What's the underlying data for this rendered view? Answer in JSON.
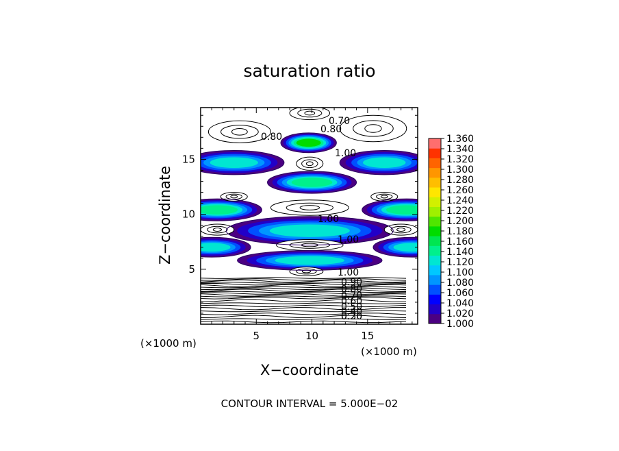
{
  "chart_data": {
    "type": "heatmap",
    "title": "saturation ratio",
    "xlabel": "X−coordinate",
    "ylabel": "Z−coordinate",
    "x_unit": "(×1000 m)",
    "y_unit": "(×1000 m)",
    "xlim": [
      0,
      19.5
    ],
    "ylim": [
      0,
      19.7
    ],
    "x_ticks": [
      5,
      10,
      15
    ],
    "y_ticks": [
      5,
      10,
      15
    ],
    "x_tick_labels": [
      "5",
      "10",
      "15"
    ],
    "y_tick_labels": [
      "5",
      "10",
      "15"
    ],
    "grid": false,
    "colorbar": {
      "min": 1.0,
      "max": 1.36,
      "step": 0.02,
      "labels": [
        "1.360",
        "1.340",
        "1.320",
        "1.300",
        "1.280",
        "1.260",
        "1.240",
        "1.220",
        "1.200",
        "1.180",
        "1.160",
        "1.140",
        "1.120",
        "1.100",
        "1.080",
        "1.060",
        "1.040",
        "1.020",
        "1.000"
      ],
      "colors": [
        "#4b0082",
        "#2200c8",
        "#0000ff",
        "#0050ff",
        "#0096ff",
        "#00c8ff",
        "#00e6d2",
        "#00f08c",
        "#00e650",
        "#00dc00",
        "#50e600",
        "#a0f000",
        "#d2f000",
        "#ffe600",
        "#ffbe00",
        "#ff9600",
        "#ff6400",
        "#ff3200",
        "#ff6e6e"
      ]
    },
    "contour_labels": [
      "0.70",
      "0.80",
      "0.80",
      "1.00",
      "1.00",
      "1.00",
      "1.00",
      "0.90",
      "0.80",
      "0.70",
      "0.60",
      "0.50",
      "0.40",
      "0.30",
      "0.20"
    ],
    "supersaturated_bands": [
      {
        "z": 16.5,
        "x_center": 9.7,
        "x_halfwidth": 2.5,
        "thickness": 0.9,
        "peak": 1.2
      },
      {
        "z": 14.7,
        "x_center": 3.0,
        "x_halfwidth": 4.5,
        "thickness": 1.1,
        "peak": 1.14
      },
      {
        "z": 14.7,
        "x_center": 16.5,
        "x_halfwidth": 4.0,
        "thickness": 1.1,
        "peak": 1.14
      },
      {
        "z": 12.9,
        "x_center": 10.0,
        "x_halfwidth": 4.0,
        "thickness": 1.0,
        "peak": 1.17
      },
      {
        "z": 10.4,
        "x_center": 1.5,
        "x_halfwidth": 4.0,
        "thickness": 1.0,
        "peak": 1.16
      },
      {
        "z": 10.4,
        "x_center": 18.5,
        "x_halfwidth": 4.0,
        "thickness": 1.0,
        "peak": 1.16
      },
      {
        "z": 8.5,
        "x_center": 9.8,
        "x_halfwidth": 7.5,
        "thickness": 1.3,
        "peak": 1.14
      },
      {
        "z": 7.0,
        "x_center": 1.0,
        "x_halfwidth": 3.5,
        "thickness": 0.9,
        "peak": 1.14
      },
      {
        "z": 7.0,
        "x_center": 19.0,
        "x_halfwidth": 3.5,
        "thickness": 0.9,
        "peak": 1.14
      },
      {
        "z": 5.8,
        "x_center": 9.8,
        "x_halfwidth": 6.5,
        "thickness": 0.9,
        "peak": 1.14
      }
    ],
    "footer": "CONTOUR INTERVAL = 5.000E−02"
  }
}
